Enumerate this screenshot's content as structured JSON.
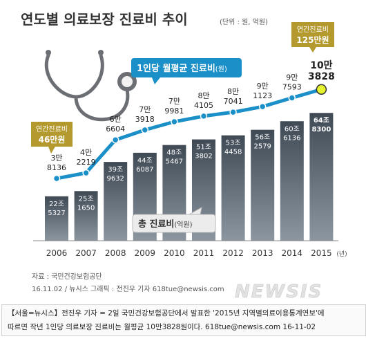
{
  "title": "연도별 의료보장 진료비 추이",
  "unit_note": "(단위 : 원, 억원)",
  "line_label_main": "1인당 월평균 진료비",
  "line_label_unit": "(원)",
  "bar_label_main": "총 진료비",
  "bar_label_unit": "(억원)",
  "callout_2006": [
    "연간진료비",
    "46만원"
  ],
  "callout_2015": [
    "연간진료비",
    "125만원"
  ],
  "source": "자료 : 국민건강보험공단",
  "credit": "16.11.02 / 뉴시스 그래픽 : 전진우 기자 618tue@newsis.com",
  "watermark": "NEWSIS",
  "caption": [
    "【서울=뉴시스】전진우 기자 = 2일 국민건강보험공단에서 발표한 '2015년 지역별의료이용통계연보'에",
    "따르면 작년 1인당 의료보장 진료비는 월평균 10만3828원이다. 618tue@newsis.com 16-11-02"
  ],
  "colors": {
    "bar_top": "#3f4a55",
    "bar_bottom": "#8c96a0",
    "line": "#1b8fc7",
    "marker": "#1b8fc7",
    "highlight": "#e4f230",
    "gold": "#b49a2e",
    "label_box": "#1b8fc7"
  },
  "chart_data": {
    "type": "bar+line",
    "categories": [
      "2006",
      "2007",
      "2008",
      "2009",
      "2010",
      "2011",
      "2012",
      "2013",
      "2014",
      "2015"
    ],
    "x_suffix": "(년)",
    "series": [
      {
        "name": "총 진료비(억원)",
        "type": "bar",
        "values": [
          225327,
          251650,
          399632,
          446087,
          485467,
          513802,
          534458,
          562579,
          606136,
          648300
        ],
        "labels": [
          [
            "22조",
            "5327"
          ],
          [
            "25조",
            "1650"
          ],
          [
            "39조",
            "9632"
          ],
          [
            "44조",
            "6087"
          ],
          [
            "48조",
            "5467"
          ],
          [
            "51조",
            "3802"
          ],
          [
            "53조",
            "4458"
          ],
          [
            "56조",
            "2579"
          ],
          [
            "60조",
            "6136"
          ],
          [
            "64조",
            "8300"
          ]
        ]
      },
      {
        "name": "1인당 월평균 진료비(원)",
        "type": "line",
        "values": [
          38136,
          42219,
          66604,
          73918,
          79981,
          84105,
          87041,
          91123,
          97593,
          103828
        ],
        "labels": [
          [
            "3만",
            "8136"
          ],
          [
            "4만",
            "2219"
          ],
          [
            "6만",
            "6604"
          ],
          [
            "7만",
            "3918"
          ],
          [
            "7만",
            "9981"
          ],
          [
            "8만",
            "4105"
          ],
          [
            "8만",
            "7041"
          ],
          [
            "9만",
            "1123"
          ],
          [
            "9만",
            "7593"
          ],
          [
            "10만",
            "3828"
          ]
        ]
      }
    ],
    "grid": false
  }
}
